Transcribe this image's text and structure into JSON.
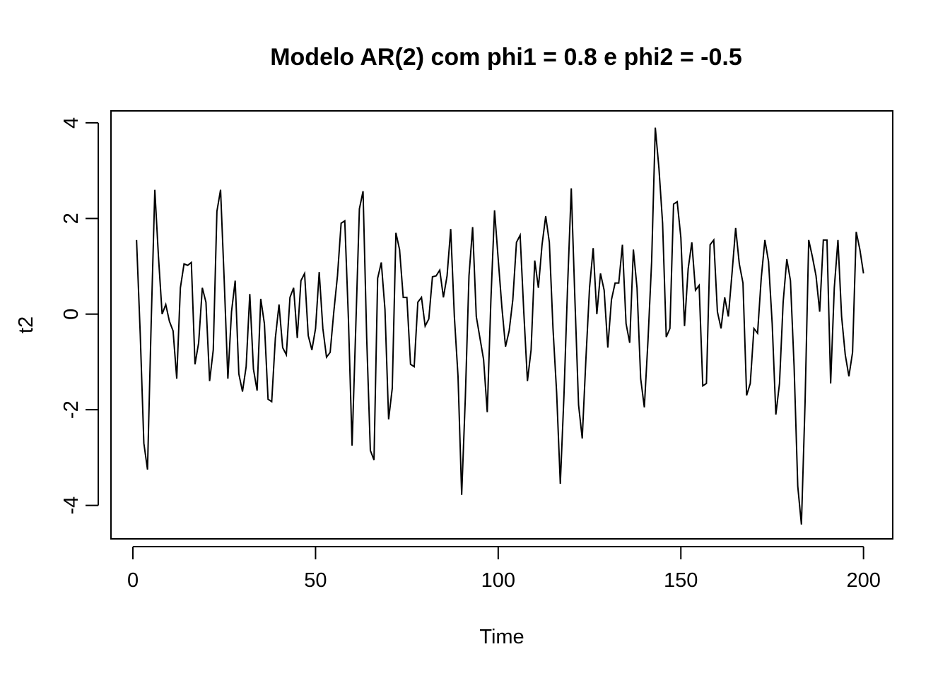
{
  "chart_data": {
    "type": "line",
    "title": "Modelo AR(2) com phi1 = 0.8 e phi2 = -0.5",
    "xlabel": "Time",
    "ylabel": "t2",
    "xlim": [
      -6,
      208
    ],
    "ylim": [
      -4.7,
      4.25
    ],
    "xticks": [
      0,
      50,
      100,
      150,
      200
    ],
    "xtick_labels": [
      "0",
      "50",
      "100",
      "150",
      "200"
    ],
    "yticks": [
      -4,
      -2,
      0,
      2,
      4
    ],
    "ytick_labels": [
      "-4",
      "-2",
      "0",
      "2",
      "4"
    ],
    "grid": false,
    "color": "#000000",
    "x_start": 1,
    "series": [
      {
        "values": [
          1.55,
          -0.4,
          -2.7,
          -3.25,
          -0.2,
          2.6,
          1.2,
          0.0,
          0.2,
          -0.15,
          -0.35,
          -1.35,
          0.55,
          1.05,
          1.02,
          1.08,
          -1.05,
          -0.6,
          0.55,
          0.25,
          -1.4,
          -0.75,
          2.15,
          2.6,
          0.7,
          -1.35,
          0.05,
          0.7,
          -1.25,
          -1.62,
          -1.1,
          0.42,
          -1.15,
          -1.6,
          0.32,
          -0.2,
          -1.78,
          -1.83,
          -0.5,
          0.2,
          -0.7,
          -0.85,
          0.35,
          0.55,
          -0.5,
          0.7,
          0.85,
          -0.45,
          -0.75,
          -0.3,
          0.88,
          -0.3,
          -0.9,
          -0.8,
          0.05,
          0.8,
          1.9,
          1.95,
          -0.1,
          -2.75,
          -0.3,
          2.2,
          2.57,
          -0.5,
          -2.85,
          -3.05,
          0.75,
          1.08,
          0.1,
          -2.2,
          -1.55,
          1.7,
          1.35,
          0.35,
          0.35,
          -1.05,
          -1.1,
          0.25,
          0.35,
          -0.25,
          -0.1,
          0.78,
          0.8,
          0.92,
          0.35,
          0.8,
          1.78,
          -0.05,
          -1.3,
          -3.78,
          -1.75,
          0.8,
          1.82,
          -0.05,
          -0.5,
          -0.95,
          -2.05,
          0.3,
          2.17,
          1.15,
          0.15,
          -0.68,
          -0.35,
          0.3,
          1.5,
          1.65,
          0.05,
          -1.4,
          -0.75,
          1.12,
          0.55,
          1.45,
          2.05,
          1.5,
          -0.3,
          -1.65,
          -3.55,
          -1.7,
          0.6,
          2.63,
          0.3,
          -1.9,
          -2.6,
          -0.95,
          0.55,
          1.38,
          0.0,
          0.85,
          0.5,
          -0.7,
          0.3,
          0.65,
          0.65,
          1.45,
          -0.2,
          -0.6,
          1.35,
          0.55,
          -1.35,
          -1.95,
          -0.55,
          1.1,
          3.9,
          3.05,
          1.9,
          -0.48,
          -0.3,
          2.3,
          2.35,
          1.6,
          -0.25,
          0.95,
          1.5,
          0.5,
          0.6,
          -1.5,
          -1.45,
          1.45,
          1.55,
          0.05,
          -0.3,
          0.35,
          -0.05,
          0.85,
          1.8,
          1.05,
          0.65,
          -1.7,
          -1.45,
          -0.3,
          -0.4,
          0.75,
          1.55,
          1.1,
          -0.2,
          -2.1,
          -1.45,
          0.25,
          1.15,
          0.7,
          -1.1,
          -3.6,
          -4.4,
          -1.85,
          1.55,
          1.2,
          0.8,
          0.05,
          1.55,
          1.55,
          -1.45,
          0.55,
          1.55,
          -0.05,
          -0.85,
          -1.3,
          -0.8,
          1.72,
          1.35,
          0.85
        ]
      }
    ]
  }
}
